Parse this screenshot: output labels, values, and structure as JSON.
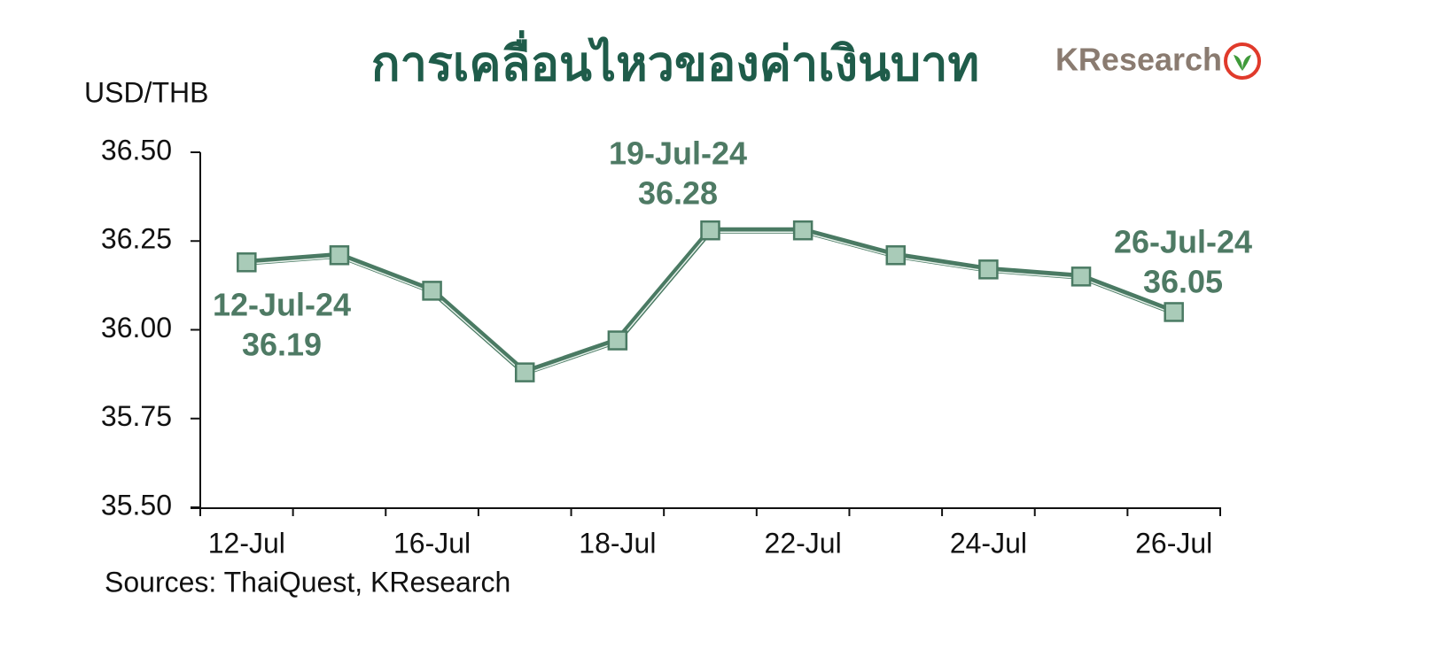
{
  "chart_data": {
    "type": "line",
    "title": "การเคลื่อนไหวของค่าเงินบาท",
    "logo": "KResearch",
    "y_label": "USD/THB",
    "source": "Sources: ThaiQuest, KResearch",
    "categories": [
      "12-Jul",
      null,
      "16-Jul",
      null,
      "18-Jul",
      null,
      "22-Jul",
      null,
      "24-Jul",
      null,
      "26-Jul"
    ],
    "series": [
      {
        "name": "USD/THB",
        "color": "#4a7a63",
        "values": [
          36.19,
          36.21,
          36.11,
          35.88,
          35.97,
          36.28,
          36.28,
          36.21,
          36.17,
          36.15,
          36.05
        ]
      }
    ],
    "ylim": [
      35.5,
      36.5
    ],
    "yticks": [
      {
        "value": 35.5,
        "label": "35.50"
      },
      {
        "value": 35.75,
        "label": "35.75"
      },
      {
        "value": 36.0,
        "label": "36.00"
      },
      {
        "value": 36.25,
        "label": "36.25"
      },
      {
        "value": 36.5,
        "label": "36.50"
      }
    ],
    "annotations": [
      {
        "date": "12-Jul-24",
        "value": "36.19"
      },
      {
        "date": "19-Jul-24",
        "value": "36.28"
      },
      {
        "date": "26-Jul-24",
        "value": "36.05"
      }
    ],
    "grid": false
  }
}
